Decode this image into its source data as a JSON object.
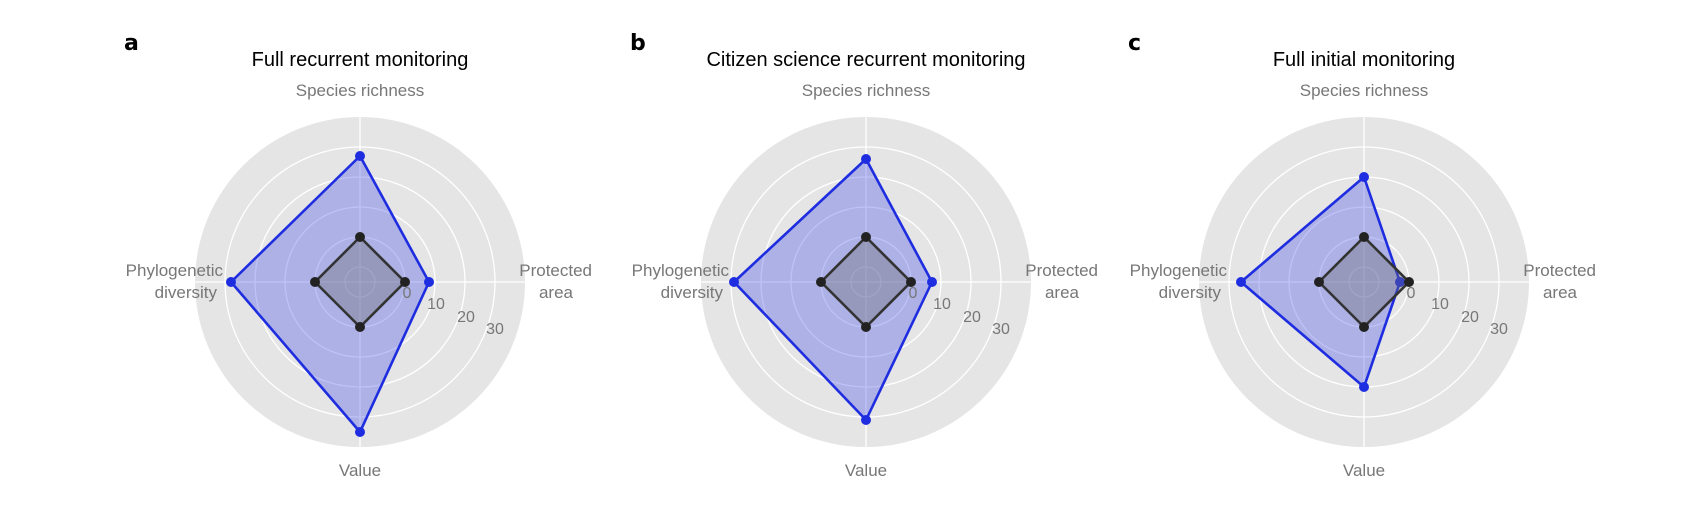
{
  "figure": {
    "colors": {
      "background_disc": "#e5e5e5",
      "grid": "#ffffff",
      "scenario": "#1f2de0",
      "scenario_fill": "rgba(70,80,230,0.35)",
      "baseline": "#333333",
      "baseline_fill": "rgba(110,110,110,0.35)",
      "text_axis": "#777777"
    }
  },
  "chart_data": [
    {
      "panel": "a",
      "title": "Full recurrent monitoring",
      "type": "radar",
      "axes": [
        "Species richness",
        "Protected area",
        "Value",
        "Phylogenetic diversity"
      ],
      "axis_labels": [
        [
          "Species richness"
        ],
        [
          "Protected",
          "area"
        ],
        [
          "Value"
        ],
        [
          "Phylogenetic",
          "diversity"
        ]
      ],
      "radial_ticks": [
        "0",
        "10",
        "20",
        "30"
      ],
      "radial_range": [
        -15,
        40
      ],
      "grid": true,
      "series": [
        {
          "values": [
            27,
            8,
            35,
            28
          ]
        },
        {
          "values": [
            0,
            0,
            0,
            0
          ]
        }
      ]
    },
    {
      "panel": "b",
      "title": "Citizen science recurrent monitoring",
      "type": "radar",
      "axes": [
        "Species richness",
        "Protected area",
        "Value",
        "Phylogenetic diversity"
      ],
      "axis_labels": [
        [
          "Species richness"
        ],
        [
          "Protected",
          "area"
        ],
        [
          "Value"
        ],
        [
          "Phylogenetic",
          "diversity"
        ]
      ],
      "radial_ticks": [
        "0",
        "10",
        "20",
        "30"
      ],
      "radial_range": [
        -15,
        40
      ],
      "grid": true,
      "series": [
        {
          "values": [
            26,
            7,
            31,
            29
          ]
        },
        {
          "values": [
            0,
            0,
            0,
            0
          ]
        }
      ]
    },
    {
      "panel": "c",
      "title": "Full initial monitoring",
      "type": "radar",
      "axes": [
        "Species richness",
        "Protected area",
        "Value",
        "Phylogenetic diversity"
      ],
      "axis_labels": [
        [
          "Species richness"
        ],
        [
          "Protected",
          "area"
        ],
        [
          "Value"
        ],
        [
          "Phylogenetic",
          "diversity"
        ]
      ],
      "radial_ticks": [
        "0",
        "10",
        "20",
        "30"
      ],
      "radial_range": [
        -15,
        40
      ],
      "grid": true,
      "series": [
        {
          "values": [
            20,
            -3,
            20,
            26
          ]
        },
        {
          "values": [
            0,
            0,
            0,
            0
          ]
        }
      ]
    }
  ]
}
